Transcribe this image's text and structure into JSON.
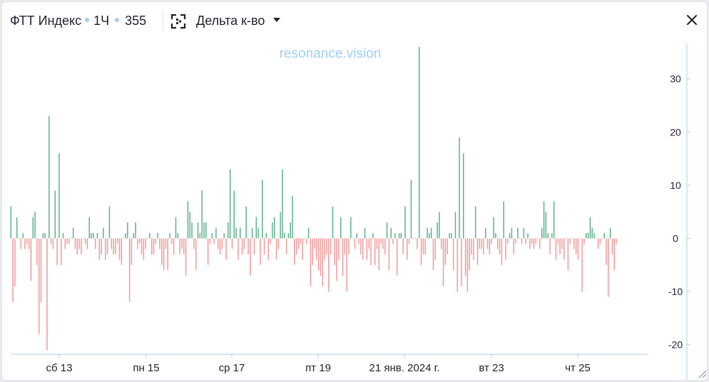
{
  "header": {
    "instrument": "ФТТ Индекс",
    "interval": "1Ч",
    "count": "355",
    "mode_label": "Дельта к-во",
    "icons": {
      "focus": "focus-frame-icon",
      "dropdown": "chevron-down-icon",
      "close": "close-icon",
      "resize": "resize-grip-icon"
    }
  },
  "watermark": "resonance.vision",
  "chart_data": {
    "type": "bar",
    "title": "",
    "xlabel": "",
    "ylabel": "",
    "ylim": [
      -21,
      36
    ],
    "yticks": [
      -20,
      -10,
      0,
      10,
      20,
      30
    ],
    "xtick_labels": [
      "сб 13",
      "пн 15",
      "ср 17",
      "пт 19",
      "21 янв. 2024 г.",
      "вт 23",
      "чт 25"
    ],
    "grid": false,
    "colors": {
      "positive": "#5fb08e",
      "negative": "#ef9a9a",
      "axis": "#a8d3ee"
    },
    "values": [
      6,
      -12,
      -9,
      4,
      0,
      -2,
      1,
      -2,
      -1,
      -2,
      -8,
      4,
      5,
      -5,
      -18,
      -12,
      1,
      1,
      -21,
      23,
      -1,
      -2,
      9,
      -5,
      16,
      -5,
      1,
      -2,
      -1,
      -1,
      0,
      2,
      -2,
      -3,
      -2,
      -3,
      0,
      -1,
      -2,
      4,
      1,
      1,
      -2,
      1,
      -4,
      -3,
      2,
      -4,
      -3,
      6,
      -2,
      -3,
      -3,
      -1,
      -4,
      -5,
      0,
      1,
      3,
      -12,
      -5,
      1,
      3,
      -2,
      -1,
      -3,
      -4,
      -2,
      0,
      1,
      -3,
      -3,
      -1,
      1,
      -2,
      -5,
      -6,
      -2,
      -6,
      1,
      -1,
      -3,
      4,
      1,
      -3,
      -2,
      -3,
      -7,
      7,
      5,
      3,
      -2,
      -6,
      3,
      1,
      9,
      3,
      3,
      -5,
      -1,
      1,
      -1,
      2,
      -2,
      -3,
      -2,
      1,
      -4,
      3,
      13,
      -2,
      9,
      2,
      -4,
      2,
      -3,
      -2,
      6,
      -3,
      -7,
      2,
      -3,
      4,
      2,
      -5,
      11,
      -3,
      1,
      -4,
      -1,
      3,
      4,
      -4,
      -2,
      5,
      13,
      1,
      -3,
      1,
      3,
      8,
      -5,
      -3,
      -2,
      -1,
      -4,
      0,
      -1,
      2,
      -9,
      -5,
      -2,
      -4,
      -6,
      -7,
      -9,
      -4,
      -3,
      -10,
      -3,
      6,
      -5,
      -8,
      -4,
      4,
      -7,
      -3,
      -10,
      -3,
      4,
      0,
      -2,
      1,
      -1,
      -3,
      -4,
      2,
      -4,
      -2,
      -5,
      1,
      -5,
      -2,
      -6,
      -1,
      -2,
      -3,
      3,
      -6,
      2,
      -1,
      1,
      -7,
      1,
      1,
      -3,
      6,
      -4,
      -1,
      11,
      0,
      0,
      -2,
      36,
      -5,
      -3,
      -3,
      2,
      1,
      2,
      -6,
      -4,
      3,
      5,
      -2,
      -9,
      -5,
      -3,
      1,
      1,
      -6,
      5,
      -10,
      19,
      -9,
      16,
      -7,
      -10,
      -6,
      -3,
      -4,
      6,
      -5,
      -2,
      -2,
      -3,
      2,
      -2,
      -3,
      -1,
      4,
      1,
      -2,
      -3,
      -5,
      7,
      -4,
      -1,
      1,
      2,
      -3,
      -1,
      2,
      0,
      -1,
      2,
      -1,
      1,
      -2,
      -1,
      -2,
      -1,
      0,
      -2,
      2,
      7,
      5,
      1,
      -3,
      1,
      7,
      -4,
      -1,
      -3,
      -2,
      -4,
      0,
      -6,
      -1,
      0,
      -2,
      -3,
      -4,
      0,
      -10,
      -1,
      1,
      1,
      4,
      2,
      1,
      0,
      -2,
      -1,
      0,
      1,
      -5,
      -11,
      2,
      -3,
      -6,
      -1
    ]
  }
}
